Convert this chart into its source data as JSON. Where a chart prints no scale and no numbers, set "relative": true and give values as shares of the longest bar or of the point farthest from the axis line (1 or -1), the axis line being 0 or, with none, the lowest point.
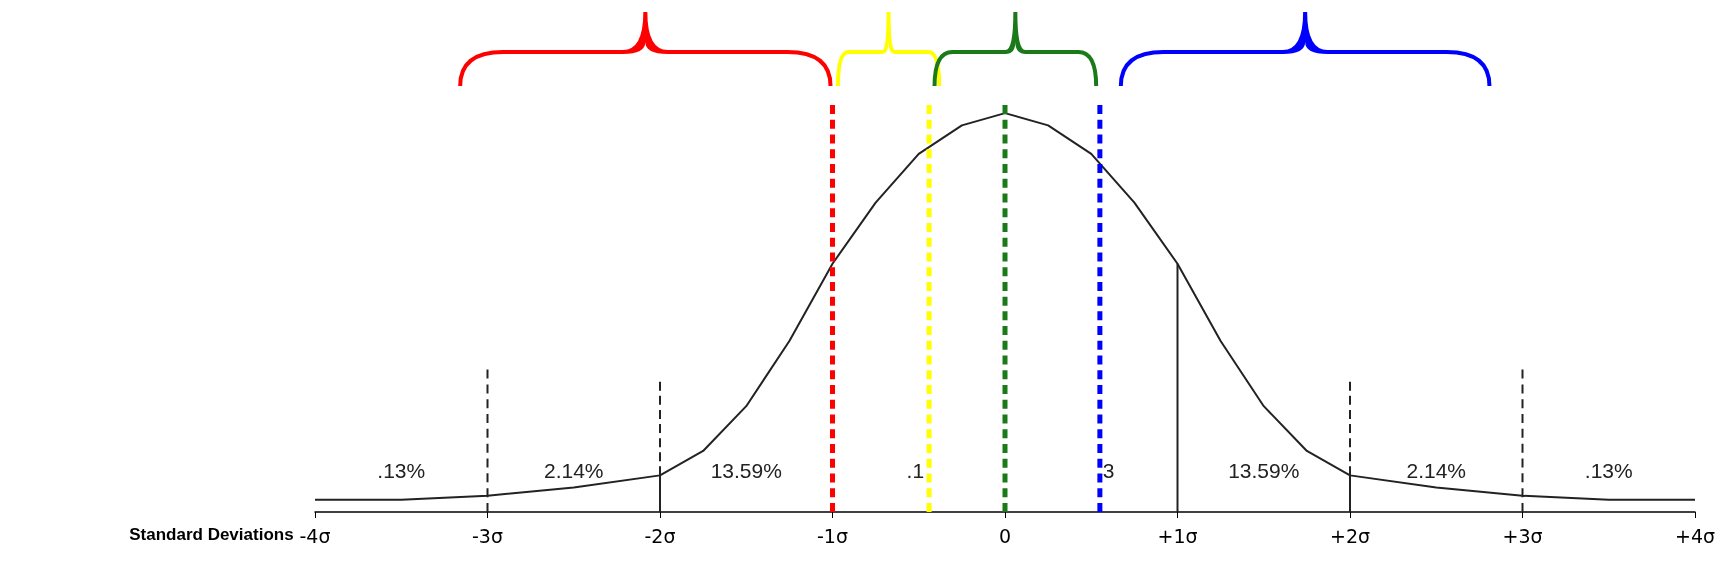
{
  "chart_data": {
    "type": "line",
    "relative": true,
    "xlabel": "Standard Deviations",
    "marker": "none",
    "xlim": [
      -4,
      4
    ],
    "xticks": [
      {
        "value": -4,
        "label": "-4σ"
      },
      {
        "value": -3,
        "label": "-3σ"
      },
      {
        "value": -2,
        "label": "-2σ"
      },
      {
        "value": -1,
        "label": "-1σ"
      },
      0,
      {
        "value": 1,
        "label": "+1σ"
      },
      {
        "value": 2,
        "label": "+2σ"
      },
      {
        "value": 3,
        "label": "+3σ"
      },
      {
        "value": 4,
        "label": "+4σ"
      }
    ],
    "series": [
      {
        "color": "#222222",
        "line_style": "solid",
        "x": [
          -4,
          -3.5,
          -3,
          -2.5,
          -2,
          -1.75,
          -1.5,
          -1.25,
          -1,
          -0.75,
          -0.5,
          -0.25,
          0,
          0.25,
          0.5,
          0.75,
          1,
          1.25,
          1.5,
          1.75,
          2,
          2.5,
          3,
          3.5,
          4
        ],
        "values": [
          0.03,
          0.03,
          0.04,
          0.06,
          0.09,
          0.15,
          0.26,
          0.42,
          0.61,
          0.76,
          0.88,
          0.95,
          0.98,
          0.95,
          0.88,
          0.76,
          0.61,
          0.42,
          0.26,
          0.15,
          0.09,
          0.06,
          0.04,
          0.03,
          0.03
        ]
      },
      {
        "color": "#222222",
        "line_style": "dashed",
        "x": [
          -3,
          -3
        ],
        "values": [
          0,
          0.35
        ]
      },
      {
        "color": "#222222",
        "line_style": "solid",
        "x": [
          -2,
          -2
        ],
        "values": [
          0,
          0.09
        ]
      },
      {
        "color": "#222222",
        "line_style": "dashed",
        "x": [
          -2,
          -2
        ],
        "values": [
          0.09,
          0.32
        ]
      },
      {
        "color": "#222222",
        "line_style": "solid",
        "x": [
          1,
          1
        ],
        "values": [
          0,
          0.61
        ]
      },
      {
        "color": "#222222",
        "line_style": "solid",
        "x": [
          2,
          2
        ],
        "values": [
          0,
          0.09
        ]
      },
      {
        "color": "#222222",
        "line_style": "dashed",
        "x": [
          2,
          2
        ],
        "values": [
          0.09,
          0.32
        ]
      },
      {
        "color": "#222222",
        "line_style": "dashed",
        "x": [
          3,
          3
        ],
        "values": [
          0,
          0.35
        ]
      },
      {
        "color": "#ff0000",
        "line_style": "dashed",
        "x": [
          -1,
          -1
        ],
        "values": [
          0,
          1
        ]
      },
      {
        "color": "#ffff00",
        "line_style": "dashed",
        "x": [
          -0.44,
          -0.44
        ],
        "values": [
          0,
          1
        ]
      },
      {
        "color": "#1a7a1a",
        "line_style": "dashed",
        "x": [
          0,
          0
        ],
        "values": [
          0,
          1
        ]
      },
      {
        "color": "#0000ff",
        "line_style": "dashed",
        "x": [
          0.55,
          0.55
        ],
        "values": [
          0,
          1
        ]
      }
    ],
    "annotations": [
      ".13%",
      "2.14%",
      "13.59%",
      ".1",
      "3",
      "13.59%",
      "2.14%",
      ".13%"
    ]
  }
}
